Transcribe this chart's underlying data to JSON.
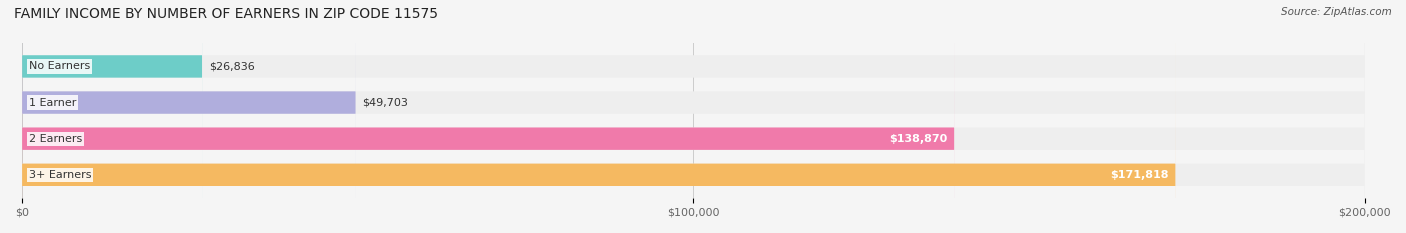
{
  "title": "FAMILY INCOME BY NUMBER OF EARNERS IN ZIP CODE 11575",
  "source": "Source: ZipAtlas.com",
  "categories": [
    "No Earners",
    "1 Earner",
    "2 Earners",
    "3+ Earners"
  ],
  "values": [
    26836,
    49703,
    138870,
    171818
  ],
  "bar_colors": [
    "#6dcdc8",
    "#b0aedd",
    "#f07aaa",
    "#f5b961"
  ],
  "bar_bg_color": "#eeeeee",
  "label_colors": [
    "#333333",
    "#333333",
    "#ffffff",
    "#ffffff"
  ],
  "value_labels": [
    "$26,836",
    "$49,703",
    "$138,870",
    "$171,818"
  ],
  "xlim": [
    0,
    200000
  ],
  "xticks": [
    0,
    100000,
    200000
  ],
  "xtick_labels": [
    "$0",
    "$100,000",
    "$200,000"
  ],
  "figsize": [
    14.06,
    2.33
  ],
  "dpi": 100,
  "background_color": "#f5f5f5"
}
